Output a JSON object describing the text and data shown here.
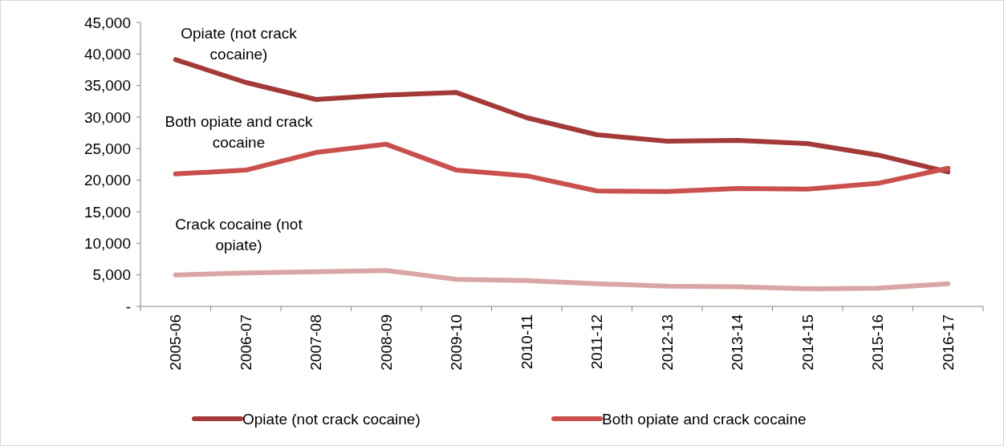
{
  "chart_data": {
    "type": "line",
    "categories": [
      "2005-06",
      "2006-07",
      "2007-08",
      "2008-09",
      "2009-10",
      "2010-11",
      "2011-12",
      "2012-13",
      "2013-14",
      "2014-15",
      "2015-16",
      "2016-17"
    ],
    "series": [
      {
        "name": "Opiate (not crack cocaine)",
        "color": "#a33a38",
        "values": [
          39100,
          35500,
          32800,
          33500,
          33900,
          29900,
          27200,
          26200,
          26300,
          25800,
          24000,
          21300
        ]
      },
      {
        "name": "Both opiate and crack cocaine",
        "color": "#c9504d",
        "values": [
          21000,
          21600,
          24400,
          25700,
          21600,
          20700,
          18300,
          18200,
          18700,
          18600,
          19500,
          21900
        ]
      },
      {
        "color": "#d9a6a5",
        "values": [
          5000,
          5300,
          5500,
          5700,
          4300,
          4100,
          3600,
          3200,
          3100,
          2800,
          2900,
          3600
        ]
      }
    ],
    "ylim": [
      0,
      45000
    ],
    "yticks": [
      {
        "value": 0,
        "label": "-"
      },
      {
        "value": 5000,
        "label": "5,000"
      },
      {
        "value": 10000,
        "label": "10,000"
      },
      {
        "value": 15000,
        "label": "15,000"
      },
      {
        "value": 20000,
        "label": "20,000"
      },
      {
        "value": 25000,
        "label": "25,000"
      },
      {
        "value": 30000,
        "label": "30,000"
      },
      {
        "value": 35000,
        "label": "35,000"
      },
      {
        "value": 40000,
        "label": "40,000"
      },
      {
        "value": 45000,
        "label": "45,000"
      }
    ],
    "annotations": [
      "Opiate (not crack cocaine)",
      "Both opiate and crack cocaine",
      "Crack cocaine (not opiate)"
    ],
    "grid": false,
    "legend": "bottom",
    "line_style": "solid"
  }
}
